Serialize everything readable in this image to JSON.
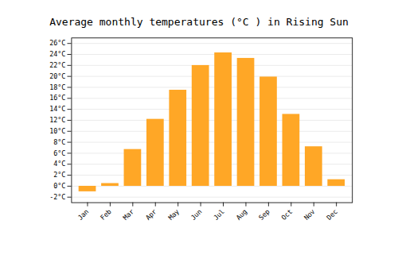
{
  "chart_data": {
    "type": "bar",
    "title": "Average monthly temperatures (°C ) in Rising Sun",
    "categories": [
      "Jan",
      "Feb",
      "Mar",
      "Apr",
      "May",
      "Jun",
      "Jul",
      "Aug",
      "Sep",
      "Oct",
      "Nov",
      "Dec"
    ],
    "values": [
      -1.0,
      0.5,
      6.7,
      12.2,
      17.5,
      22.0,
      24.3,
      23.3,
      19.9,
      13.1,
      7.2,
      1.2
    ],
    "color": "#FFA726",
    "ylim": [
      -3,
      27
    ],
    "yticks": [
      {
        "value": -2,
        "label": "-2°C"
      },
      {
        "value": 0,
        "label": "0°C"
      },
      {
        "value": 2,
        "label": "2°C"
      },
      {
        "value": 4,
        "label": "4°C"
      },
      {
        "value": 6,
        "label": "6°C"
      },
      {
        "value": 8,
        "label": "8°C"
      },
      {
        "value": 10,
        "label": "10°C"
      },
      {
        "value": 12,
        "label": "12°C"
      },
      {
        "value": 14,
        "label": "14°C"
      },
      {
        "value": 16,
        "label": "16°C"
      },
      {
        "value": 18,
        "label": "18°C"
      },
      {
        "value": 20,
        "label": "20°C"
      },
      {
        "value": 22,
        "label": "22°C"
      },
      {
        "value": 24,
        "label": "24°C"
      },
      {
        "value": 26,
        "label": "26°C"
      }
    ],
    "grid": true
  }
}
